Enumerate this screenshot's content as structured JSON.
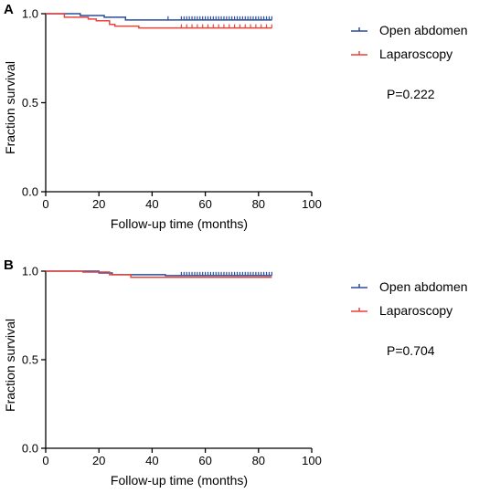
{
  "chart_data": [
    {
      "panel_label": "A",
      "type": "line",
      "xlabel": "Follow-up time (months)",
      "ylabel": "Fraction survival",
      "xlim": [
        0,
        100
      ],
      "ylim": [
        0.0,
        1.0
      ],
      "xticks": [
        0,
        20,
        40,
        60,
        80,
        100
      ],
      "yticks": [
        0.0,
        0.5,
        1.0
      ],
      "ytick_labels": [
        "0.0",
        "0.5",
        "1.0"
      ],
      "grid": false,
      "legend_position": "right",
      "annotation": "P=0.222",
      "series": [
        {
          "name": "Open abdomen",
          "color": "#2b4c9b",
          "steps": [
            [
              0,
              1.0
            ],
            [
              13,
              0.99
            ],
            [
              22,
              0.98
            ],
            [
              30,
              0.965
            ],
            [
              85,
              0.965
            ]
          ],
          "censored": [
            46,
            51,
            52,
            53,
            54,
            55,
            56,
            57,
            58,
            59,
            60,
            61,
            62,
            63,
            64,
            65,
            66,
            67,
            68,
            69,
            70,
            71,
            72,
            73,
            74,
            75,
            76,
            77,
            78,
            79,
            80,
            81,
            82,
            83,
            84,
            85
          ]
        },
        {
          "name": "Laparoscopy",
          "color": "#e8443a",
          "steps": [
            [
              0,
              1.0
            ],
            [
              7,
              0.98
            ],
            [
              16,
              0.97
            ],
            [
              19,
              0.96
            ],
            [
              24,
              0.94
            ],
            [
              26,
              0.93
            ],
            [
              35,
              0.92
            ],
            [
              85,
              0.92
            ]
          ],
          "censored": [
            51,
            53,
            55,
            57,
            59,
            61,
            63,
            65,
            67,
            69,
            71,
            73,
            75,
            77,
            79,
            81,
            83,
            85
          ]
        }
      ]
    },
    {
      "panel_label": "B",
      "type": "line",
      "xlabel": "Follow-up time (months)",
      "ylabel": "Fraction survival",
      "xlim": [
        0,
        100
      ],
      "ylim": [
        0.0,
        1.0
      ],
      "xticks": [
        0,
        20,
        40,
        60,
        80,
        100
      ],
      "yticks": [
        0.0,
        0.5,
        1.0
      ],
      "ytick_labels": [
        "0.0",
        "0.5",
        "1.0"
      ],
      "grid": false,
      "legend_position": "right",
      "annotation": "P=0.704",
      "series": [
        {
          "name": "Open abdomen",
          "color": "#2b4c9b",
          "steps": [
            [
              0,
              1.0
            ],
            [
              20,
              0.99
            ],
            [
              25,
              0.98
            ],
            [
              45,
              0.975
            ],
            [
              85,
              0.975
            ]
          ],
          "censored": [
            51,
            52,
            53,
            54,
            55,
            56,
            57,
            58,
            59,
            60,
            61,
            62,
            63,
            64,
            65,
            66,
            67,
            68,
            69,
            70,
            71,
            72,
            73,
            74,
            75,
            76,
            77,
            78,
            79,
            80,
            81,
            82,
            83,
            84,
            85
          ]
        },
        {
          "name": "Laparoscopy",
          "color": "#e8443a",
          "steps": [
            [
              0,
              1.0
            ],
            [
              14,
              0.995
            ],
            [
              24,
              0.98
            ],
            [
              32,
              0.965
            ],
            [
              85,
              0.965
            ]
          ],
          "censored": []
        }
      ]
    }
  ]
}
